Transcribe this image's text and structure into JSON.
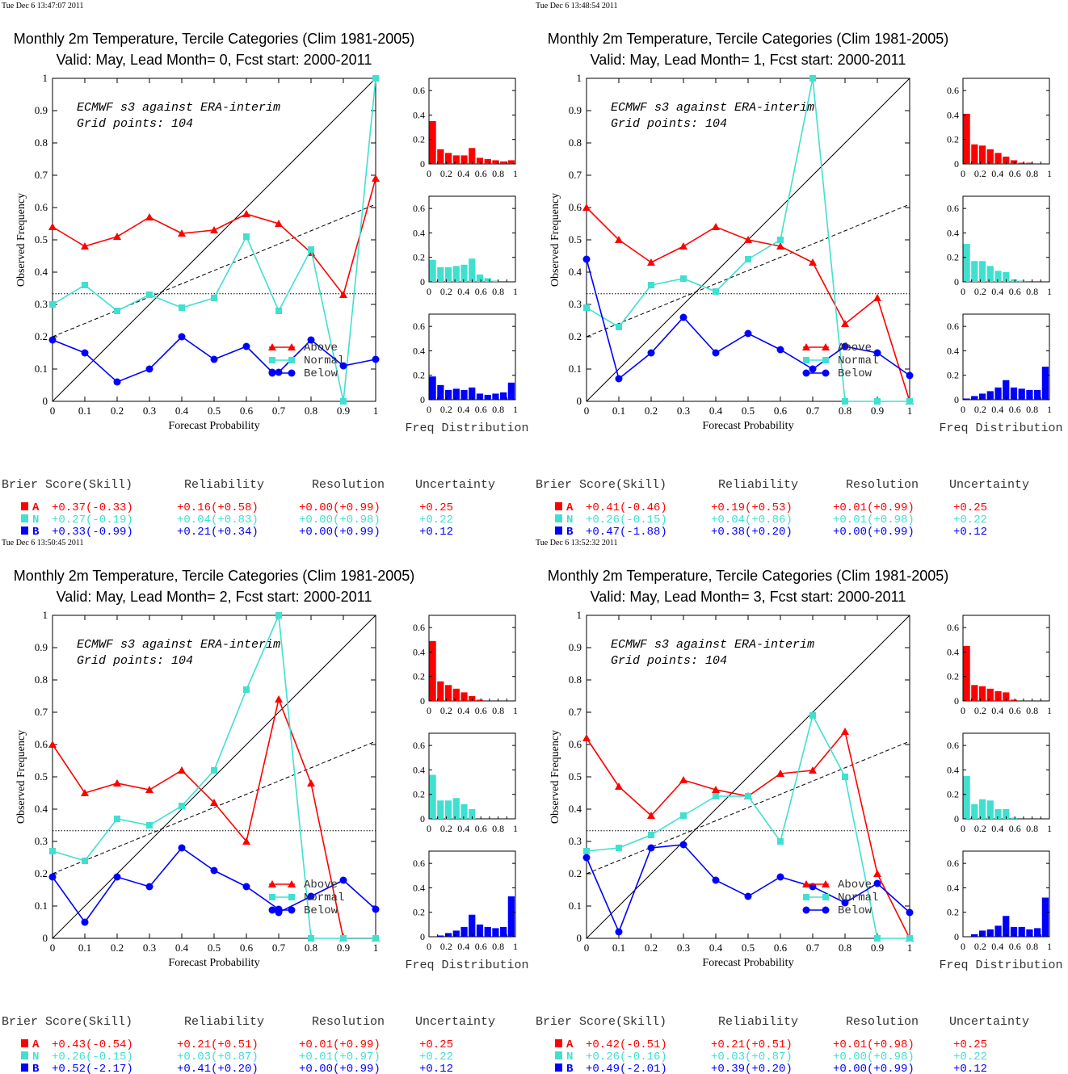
{
  "colors": {
    "above": "#ff0000",
    "normal": "#40e0d0",
    "below": "#0000ff"
  },
  "chart_data": [
    {
      "type": "line",
      "timestamp": "Tue Dec  6 13:47:07 2011",
      "title": "Monthly 2m Temperature, Tercile Categories (Clim 1981-2005)",
      "subtitle": "Valid: May, Lead Month= 0, Fcst start: 2000-2011",
      "annotation1": "ECMWF s3 against ERA-interim",
      "annotation2": "Grid points:  104",
      "xlabel": "Forecast Probability",
      "ylabel": "Observed Frequency",
      "hist_label": "Freq Distribution",
      "xlim": [
        0,
        1
      ],
      "ylim": [
        0,
        1
      ],
      "x": [
        0,
        0.1,
        0.2,
        0.3,
        0.4,
        0.5,
        0.6,
        0.7,
        0.8,
        0.9,
        1.0
      ],
      "series": [
        {
          "name": "Above",
          "values": [
            0.54,
            0.48,
            0.51,
            0.57,
            0.52,
            0.53,
            0.58,
            0.55,
            0.46,
            0.33,
            0.69
          ]
        },
        {
          "name": "Normal",
          "values": [
            0.3,
            0.36,
            0.28,
            0.33,
            0.29,
            0.32,
            0.51,
            0.28,
            0.47,
            0.0,
            1.0
          ]
        },
        {
          "name": "Below",
          "values": [
            0.19,
            0.15,
            0.06,
            0.1,
            0.2,
            0.13,
            0.17,
            0.09,
            0.19,
            0.11,
            0.13
          ],
          "x": [
            0,
            0.1,
            0.2,
            0.3,
            0.4,
            0.5,
            0.6,
            0.7,
            0.8,
            0.9,
            1.0
          ],
          "extra": {
            "x": 0.68,
            "y": 0.09
          }
        }
      ],
      "histograms": {
        "above": [
          0.35,
          0.12,
          0.09,
          0.07,
          0.07,
          0.13,
          0.05,
          0.04,
          0.03,
          0.02,
          0.03
        ],
        "normal": [
          0.18,
          0.12,
          0.12,
          0.13,
          0.14,
          0.19,
          0.06,
          0.03,
          0.01,
          0.0,
          0.0
        ],
        "below": [
          0.19,
          0.12,
          0.08,
          0.09,
          0.08,
          0.1,
          0.05,
          0.04,
          0.05,
          0.06,
          0.14
        ]
      },
      "scores": {
        "headers": [
          "Brier Score(Skill)",
          "Reliability",
          "Resolution",
          "Uncertainty"
        ],
        "rows": [
          {
            "cat": "A",
            "bs": "+0.37(-0.33)",
            "rel": "+0.16(+0.58)",
            "res": "+0.00(+0.99)",
            "unc": "+0.25"
          },
          {
            "cat": "N",
            "bs": "+0.27(-0.19)",
            "rel": "+0.04(+0.83)",
            "res": "+0.00(+0.98)",
            "unc": "+0.22"
          },
          {
            "cat": "B",
            "bs": "+0.33(-0.99)",
            "rel": "+0.21(+0.34)",
            "res": "+0.00(+0.99)",
            "unc": "+0.12"
          }
        ]
      }
    },
    {
      "type": "line",
      "timestamp": "Tue Dec  6 13:48:54 2011",
      "title": "Monthly 2m Temperature, Tercile Categories (Clim 1981-2005)",
      "subtitle": "Valid: May, Lead Month= 1, Fcst start: 2000-2011",
      "annotation1": "ECMWF s3 against ERA-interim",
      "annotation2": "Grid points:  104",
      "xlabel": "Forecast Probability",
      "ylabel": "Observed Frequency",
      "hist_label": "Freq Distribution",
      "xlim": [
        0,
        1
      ],
      "ylim": [
        0,
        1
      ],
      "x": [
        0,
        0.1,
        0.2,
        0.3,
        0.4,
        0.5,
        0.6,
        0.7,
        0.8,
        0.9,
        1.0
      ],
      "series": [
        {
          "name": "Above",
          "values": [
            0.6,
            0.5,
            0.43,
            0.48,
            0.54,
            0.5,
            0.48,
            0.43,
            0.24,
            0.32,
            0.0
          ]
        },
        {
          "name": "Normal",
          "values": [
            0.29,
            0.23,
            0.36,
            0.38,
            0.34,
            0.44,
            0.5,
            1.0,
            0.0,
            0.0,
            0.0
          ]
        },
        {
          "name": "Below",
          "values": [
            0.44,
            0.07,
            0.15,
            0.26,
            0.15,
            0.21,
            0.16,
            0.1,
            0.17,
            0.15,
            0.08
          ]
        }
      ],
      "histograms": {
        "above": [
          0.41,
          0.16,
          0.15,
          0.12,
          0.09,
          0.06,
          0.03,
          0.01,
          0.01,
          0.0,
          0.0
        ],
        "normal": [
          0.31,
          0.17,
          0.17,
          0.13,
          0.09,
          0.08,
          0.02,
          0.01,
          0.0,
          0.0,
          0.0
        ],
        "below": [
          0.01,
          0.03,
          0.05,
          0.07,
          0.1,
          0.16,
          0.1,
          0.09,
          0.08,
          0.08,
          0.27
        ]
      },
      "scores": {
        "headers": [
          "Brier Score(Skill)",
          "Reliability",
          "Resolution",
          "Uncertainty"
        ],
        "rows": [
          {
            "cat": "A",
            "bs": "+0.41(-0.46)",
            "rel": "+0.19(+0.53)",
            "res": "+0.01(+0.99)",
            "unc": "+0.25"
          },
          {
            "cat": "N",
            "bs": "+0.26(-0.15)",
            "rel": "+0.04(+0.86)",
            "res": "+0.01(+0.98)",
            "unc": "+0.22"
          },
          {
            "cat": "B",
            "bs": "+0.47(-1.88)",
            "rel": "+0.38(+0.20)",
            "res": "+0.00(+0.99)",
            "unc": "+0.12"
          }
        ]
      }
    },
    {
      "type": "line",
      "timestamp": "Tue Dec  6 13:50:45 2011",
      "title": "Monthly 2m Temperature, Tercile Categories (Clim 1981-2005)",
      "subtitle": "Valid: May, Lead Month= 2, Fcst start: 2000-2011",
      "annotation1": "ECMWF s3 against ERA-interim",
      "annotation2": "Grid points:  104",
      "xlabel": "Forecast Probability",
      "ylabel": "Observed Frequency",
      "hist_label": "Freq Distribution",
      "xlim": [
        0,
        1
      ],
      "ylim": [
        0,
        1
      ],
      "x": [
        0,
        0.1,
        0.2,
        0.3,
        0.4,
        0.5,
        0.6,
        0.7,
        0.8,
        0.9,
        1.0
      ],
      "series": [
        {
          "name": "Above",
          "values": [
            0.6,
            0.45,
            0.48,
            0.46,
            0.52,
            0.42,
            0.3,
            0.74,
            0.48,
            0.0,
            0.0
          ]
        },
        {
          "name": "Normal",
          "values": [
            0.27,
            0.24,
            0.37,
            0.35,
            0.41,
            0.52,
            0.77,
            1.0,
            0.0,
            0.0,
            0.0
          ]
        },
        {
          "name": "Below",
          "values": [
            0.19,
            0.05,
            0.19,
            0.16,
            0.28,
            0.21,
            0.16,
            0.09,
            0.13,
            0.18,
            0.09
          ],
          "extra": {
            "x": 0.7,
            "y": 0.08
          }
        }
      ],
      "histograms": {
        "above": [
          0.49,
          0.16,
          0.13,
          0.1,
          0.07,
          0.04,
          0.01,
          0.0,
          0.0,
          0.0,
          0.0
        ],
        "normal": [
          0.36,
          0.15,
          0.15,
          0.17,
          0.12,
          0.08,
          0.0,
          0.0,
          0.0,
          0.0,
          0.0
        ],
        "below": [
          0.0,
          0.01,
          0.03,
          0.05,
          0.08,
          0.18,
          0.1,
          0.08,
          0.07,
          0.08,
          0.33
        ]
      },
      "scores": {
        "headers": [
          "Brier Score(Skill)",
          "Reliability",
          "Resolution",
          "Uncertainty"
        ],
        "rows": [
          {
            "cat": "A",
            "bs": "+0.43(-0.54)",
            "rel": "+0.21(+0.51)",
            "res": "+0.01(+0.99)",
            "unc": "+0.25"
          },
          {
            "cat": "N",
            "bs": "+0.26(-0.15)",
            "rel": "+0.03(+0.87)",
            "res": "+0.01(+0.97)",
            "unc": "+0.22"
          },
          {
            "cat": "B",
            "bs": "+0.52(-2.17)",
            "rel": "+0.41(+0.20)",
            "res": "+0.00(+0.99)",
            "unc": "+0.12"
          }
        ]
      }
    },
    {
      "type": "line",
      "timestamp": "Tue Dec  6 13:52:32 2011",
      "title": "Monthly 2m Temperature, Tercile Categories (Clim 1981-2005)",
      "subtitle": "Valid: May, Lead Month= 3, Fcst start: 2000-2011",
      "annotation1": "ECMWF s3 against ERA-interim",
      "annotation2": "Grid points:  104",
      "xlabel": "Forecast Probability",
      "ylabel": "Observed Frequency",
      "hist_label": "Freq Distribution",
      "xlim": [
        0,
        1
      ],
      "ylim": [
        0,
        1
      ],
      "x": [
        0,
        0.1,
        0.2,
        0.3,
        0.4,
        0.5,
        0.6,
        0.7,
        0.8,
        0.9,
        1.0
      ],
      "series": [
        {
          "name": "Above",
          "values": [
            0.62,
            0.47,
            0.38,
            0.49,
            0.46,
            0.44,
            0.51,
            0.52,
            0.64,
            0.2,
            0.0
          ]
        },
        {
          "name": "Normal",
          "values": [
            0.27,
            0.28,
            0.32,
            0.38,
            0.44,
            0.44,
            0.3,
            0.69,
            0.5,
            0.0,
            0.0
          ]
        },
        {
          "name": "Below",
          "values": [
            0.25,
            0.02,
            0.28,
            0.29,
            0.18,
            0.13,
            0.19,
            0.16,
            0.11,
            0.17,
            0.08
          ]
        }
      ],
      "histograms": {
        "above": [
          0.45,
          0.13,
          0.12,
          0.1,
          0.08,
          0.07,
          0.01,
          0.0,
          0.0,
          0.0,
          0.0
        ],
        "normal": [
          0.35,
          0.12,
          0.16,
          0.15,
          0.08,
          0.08,
          0.01,
          0.0,
          0.0,
          0.0,
          0.0
        ],
        "below": [
          0.0,
          0.02,
          0.05,
          0.06,
          0.09,
          0.17,
          0.08,
          0.08,
          0.06,
          0.07,
          0.32
        ]
      },
      "scores": {
        "headers": [
          "Brier Score(Skill)",
          "Reliability",
          "Resolution",
          "Uncertainty"
        ],
        "rows": [
          {
            "cat": "A",
            "bs": "+0.42(-0.51)",
            "rel": "+0.21(+0.51)",
            "res": "+0.01(+0.98)",
            "unc": "+0.25"
          },
          {
            "cat": "N",
            "bs": "+0.26(-0.16)",
            "rel": "+0.03(+0.87)",
            "res": "+0.00(+0.98)",
            "unc": "+0.22"
          },
          {
            "cat": "B",
            "bs": "+0.49(-2.01)",
            "rel": "+0.39(+0.20)",
            "res": "+0.00(+0.99)",
            "unc": "+0.12"
          }
        ]
      }
    }
  ]
}
